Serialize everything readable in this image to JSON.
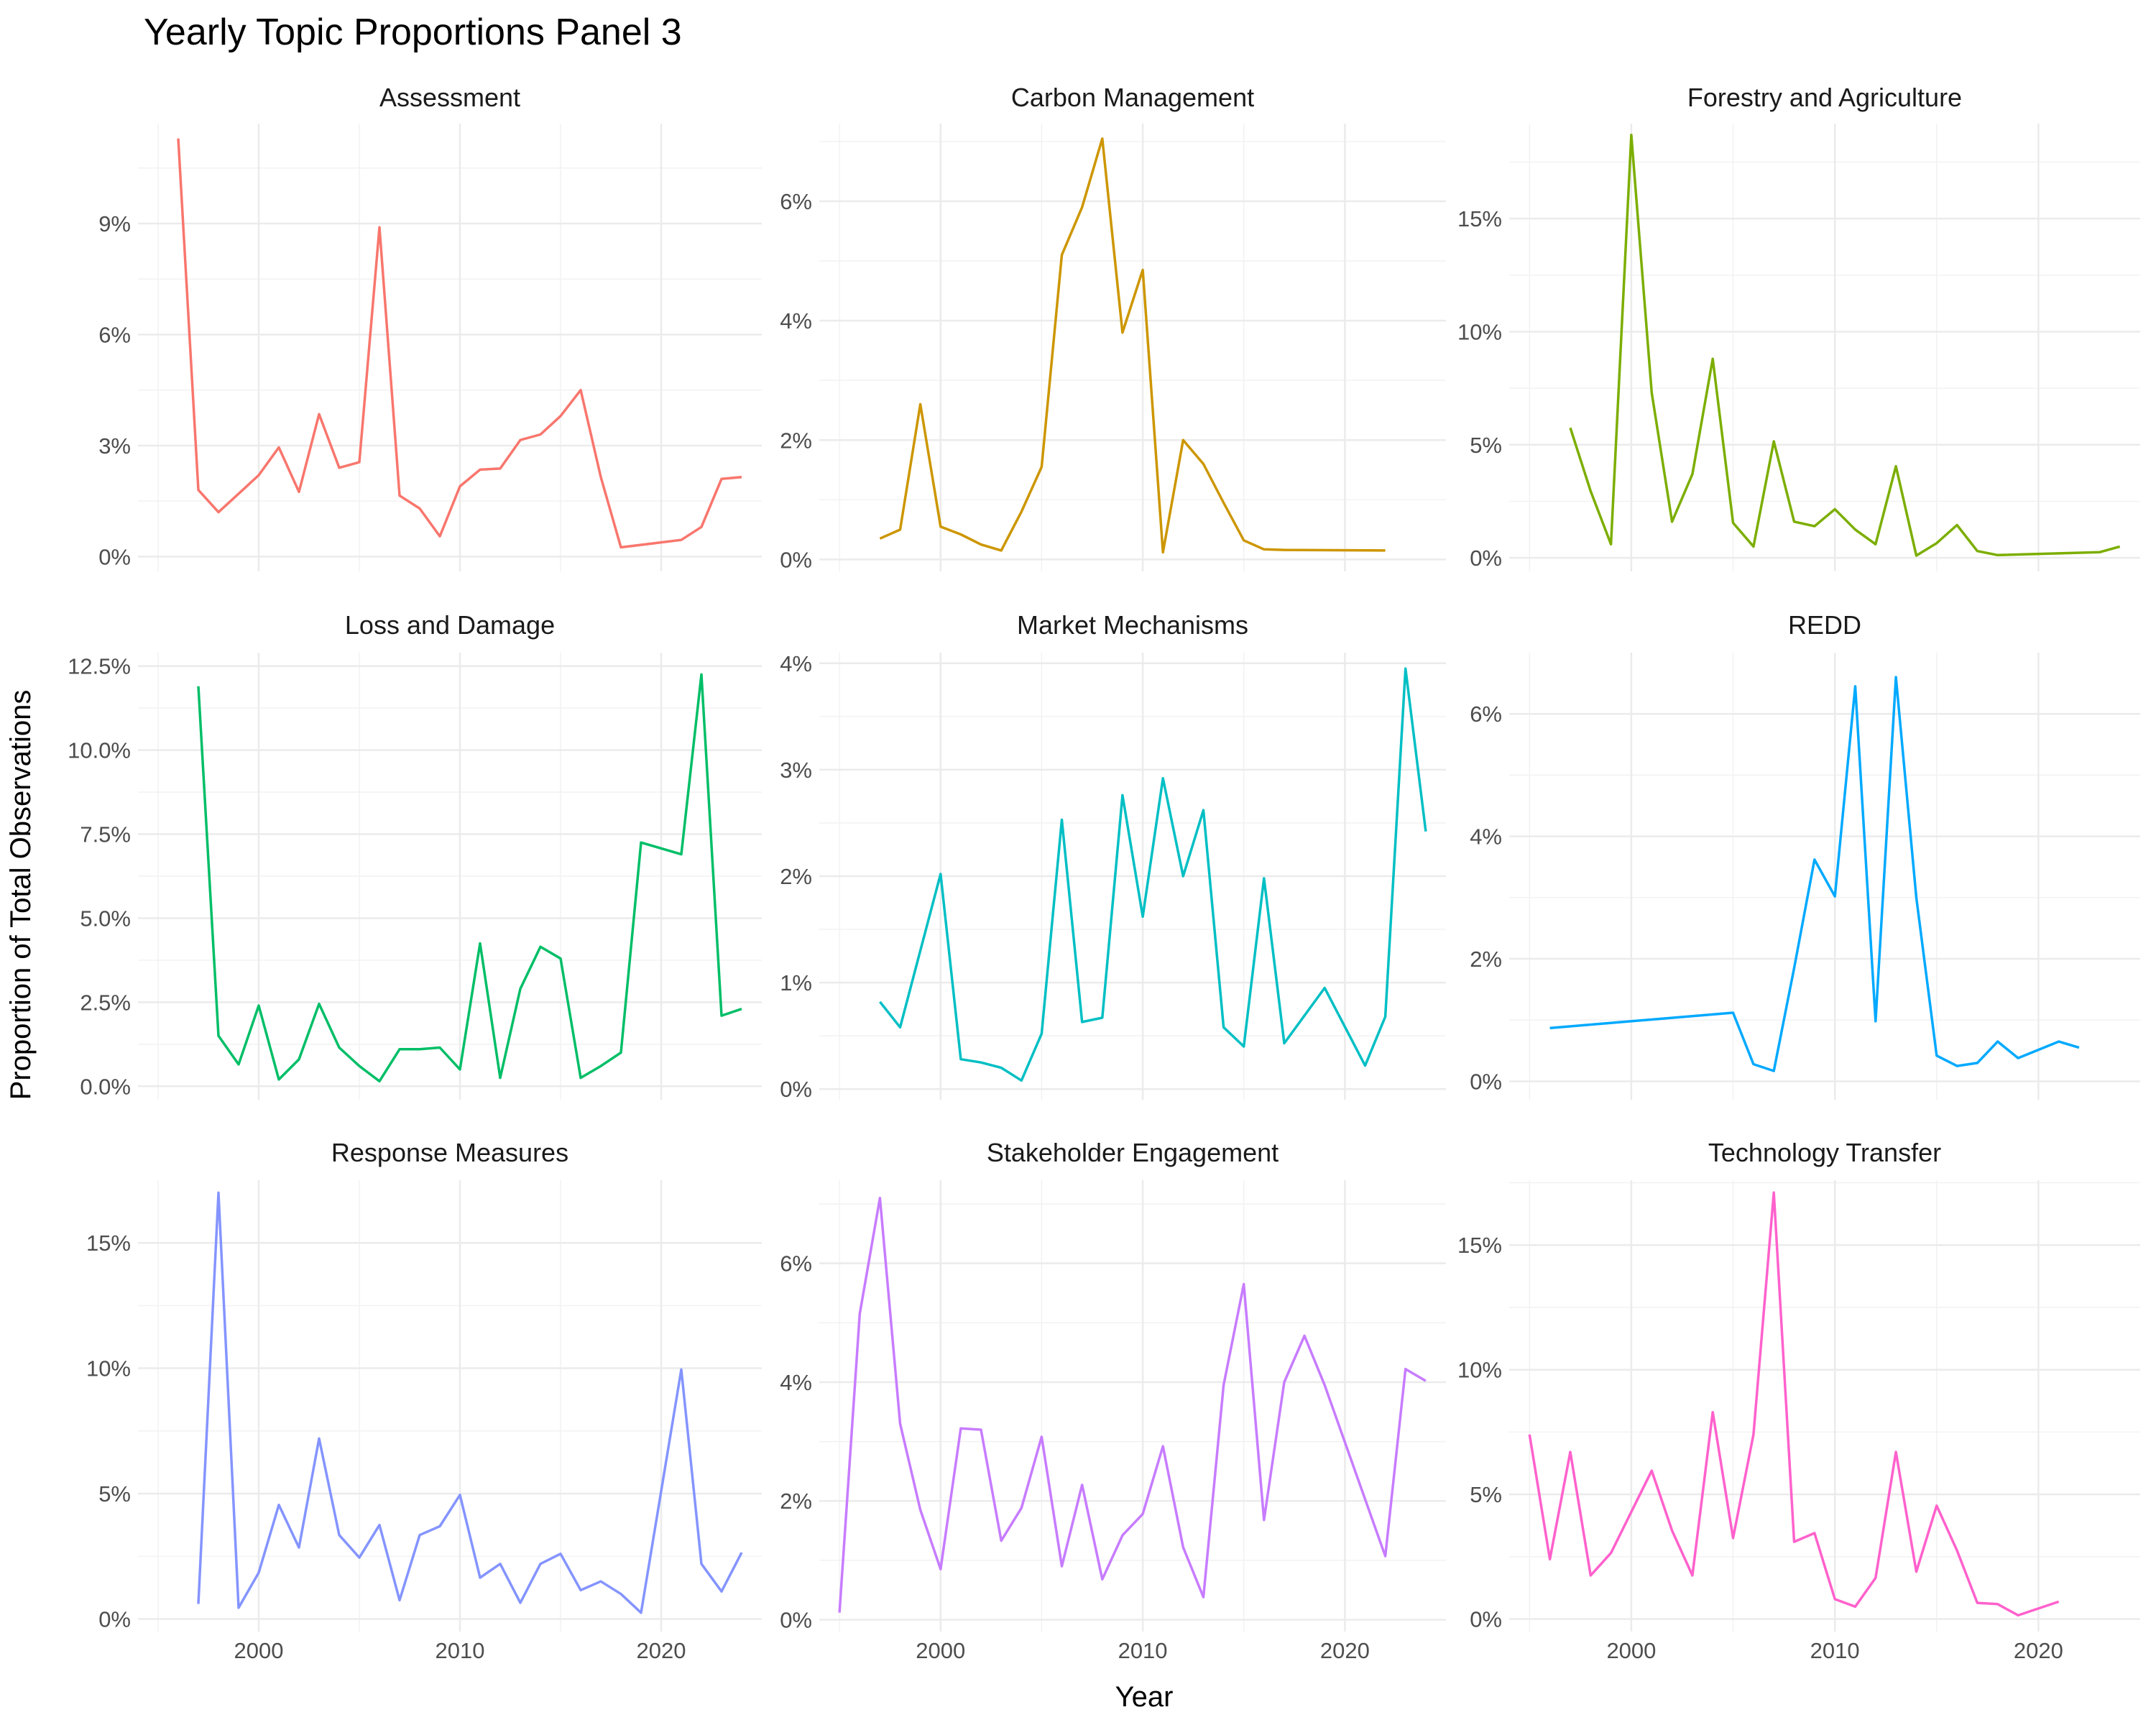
{
  "chart_data": {
    "type": "line",
    "title": "Yearly Topic Proportions Panel 3",
    "xlabel": "Year",
    "ylabel": "Proportion of Total Observations",
    "xlim": [
      1994,
      2025
    ],
    "x_ticks": [
      2000,
      2010,
      2020
    ],
    "x_tick_labels": [
      "2000",
      "2010",
      "2020"
    ],
    "grid": true,
    "legend": "none",
    "panels": [
      {
        "name": "Assessment",
        "color": "#F8766D",
        "ylim": [
          -0.4,
          11.7
        ],
        "y_ticks": [
          0,
          3,
          6,
          9
        ],
        "y_tick_labels": [
          "0%",
          "3%",
          "6%",
          "9%"
        ],
        "x": [
          1996,
          1997,
          1998,
          1999,
          2000,
          2001,
          2002,
          2003,
          2004,
          2005,
          2006,
          2007,
          2008,
          2009,
          2010,
          2011,
          2012,
          2013,
          2014,
          2015,
          2016,
          2017,
          2018,
          2021,
          2022,
          2023,
          2024
        ],
        "values": [
          11.3,
          1.8,
          1.2,
          1.7,
          2.2,
          2.95,
          1.75,
          3.85,
          2.4,
          2.55,
          8.9,
          1.65,
          1.3,
          0.55,
          1.9,
          2.35,
          2.38,
          3.15,
          3.3,
          3.8,
          4.5,
          2.15,
          0.25,
          0.45,
          0.8,
          2.1,
          2.15
        ]
      },
      {
        "name": "Carbon Management",
        "color": "#CD9600",
        "ylim": [
          -0.2,
          7.3
        ],
        "y_ticks": [
          0,
          2,
          4,
          6
        ],
        "y_tick_labels": [
          "0%",
          "2%",
          "4%",
          "6%"
        ],
        "x": [
          1997,
          1998,
          1999,
          2000,
          2001,
          2002,
          2003,
          2004,
          2005,
          2006,
          2007,
          2008,
          2009,
          2010,
          2011,
          2012,
          2013,
          2014,
          2015,
          2016,
          2017,
          2022
        ],
        "values": [
          0.35,
          0.5,
          2.6,
          0.55,
          0.42,
          0.25,
          0.15,
          0.8,
          1.55,
          5.1,
          5.9,
          7.05,
          3.8,
          4.85,
          0.12,
          2.0,
          1.6,
          0.95,
          0.32,
          0.17,
          0.16,
          0.15
        ]
      },
      {
        "name": "Forestry and Agriculture",
        "color": "#7CAE00",
        "ylim": [
          -0.6,
          19.2
        ],
        "y_ticks": [
          0,
          5,
          10,
          15
        ],
        "y_tick_labels": [
          "0%",
          "5%",
          "10%",
          "15%"
        ],
        "x": [
          1997,
          1998,
          1999,
          2000,
          2001,
          2002,
          2003,
          2004,
          2005,
          2006,
          2007,
          2008,
          2009,
          2010,
          2011,
          2012,
          2013,
          2014,
          2015,
          2016,
          2017,
          2018,
          2023,
          2024
        ],
        "values": [
          5.75,
          2.95,
          0.6,
          18.7,
          7.3,
          1.6,
          3.7,
          8.8,
          1.55,
          0.5,
          5.15,
          1.6,
          1.4,
          2.15,
          1.25,
          0.6,
          4.05,
          0.1,
          0.65,
          1.45,
          0.3,
          0.12,
          0.25,
          0.5
        ]
      },
      {
        "name": "Loss and Damage",
        "color": "#00BE67",
        "ylim": [
          -0.4,
          12.9
        ],
        "y_ticks": [
          0,
          2.5,
          5,
          7.5,
          10,
          12.5
        ],
        "y_tick_labels": [
          "0.0%",
          "2.5%",
          "5.0%",
          "7.5%",
          "10.0%",
          "12.5%"
        ],
        "x": [
          1997,
          1998,
          1999,
          2000,
          2001,
          2002,
          2003,
          2004,
          2005,
          2006,
          2007,
          2008,
          2009,
          2010,
          2011,
          2012,
          2013,
          2014,
          2015,
          2016,
          2017,
          2018,
          2019,
          2021,
          2022,
          2023,
          2024
        ],
        "values": [
          11.9,
          1.5,
          0.65,
          2.4,
          0.2,
          0.8,
          2.45,
          1.15,
          0.6,
          0.15,
          1.1,
          1.1,
          1.15,
          0.5,
          4.25,
          0.25,
          2.9,
          4.15,
          3.8,
          0.25,
          0.6,
          1.0,
          7.25,
          6.9,
          12.25,
          2.1,
          2.3
        ]
      },
      {
        "name": "Market Mechanisms",
        "color": "#00BFC4",
        "ylim": [
          -0.1,
          4.1
        ],
        "y_ticks": [
          0,
          1,
          2,
          3,
          4
        ],
        "y_tick_labels": [
          "0%",
          "1%",
          "2%",
          "3%",
          "4%"
        ],
        "x": [
          1997,
          1998,
          1999,
          2000,
          2001,
          2002,
          2003,
          2004,
          2005,
          2006,
          2007,
          2008,
          2009,
          2010,
          2011,
          2012,
          2013,
          2014,
          2015,
          2016,
          2017,
          2019,
          2021,
          2022,
          2023,
          2024
        ],
        "values": [
          0.82,
          0.58,
          1.3,
          2.02,
          0.28,
          0.25,
          0.2,
          0.08,
          0.52,
          2.53,
          0.63,
          0.67,
          2.76,
          1.62,
          2.92,
          2.0,
          2.62,
          0.58,
          0.4,
          1.98,
          0.43,
          0.95,
          0.22,
          0.68,
          3.95,
          2.42
        ]
      },
      {
        "name": "REDD",
        "color": "#00A9FF",
        "ylim": [
          -0.3,
          7.0
        ],
        "y_ticks": [
          0,
          2,
          4,
          6
        ],
        "y_tick_labels": [
          "0%",
          "2%",
          "4%",
          "6%"
        ],
        "x": [
          1996,
          2005,
          2006,
          2007,
          2008,
          2009,
          2010,
          2011,
          2012,
          2013,
          2014,
          2015,
          2016,
          2017,
          2018,
          2019,
          2021,
          2022
        ],
        "values": [
          0.87,
          1.12,
          0.28,
          0.17,
          1.85,
          3.62,
          3.02,
          6.45,
          0.98,
          6.6,
          3.0,
          0.42,
          0.25,
          0.3,
          0.65,
          0.38,
          0.65,
          0.55
        ]
      },
      {
        "name": "Response Measures",
        "color": "#8494FF",
        "ylim": [
          -0.5,
          17.5
        ],
        "y_ticks": [
          0,
          5,
          10,
          15
        ],
        "y_tick_labels": [
          "0%",
          "5%",
          "10%",
          "15%"
        ],
        "x": [
          1997,
          1998,
          1999,
          2000,
          2001,
          2002,
          2003,
          2004,
          2005,
          2006,
          2007,
          2008,
          2009,
          2010,
          2011,
          2012,
          2013,
          2014,
          2015,
          2016,
          2017,
          2018,
          2019,
          2021,
          2022,
          2023,
          2024
        ],
        "values": [
          0.6,
          17.0,
          0.45,
          1.85,
          4.55,
          2.85,
          7.2,
          3.35,
          2.45,
          3.75,
          0.75,
          3.35,
          3.7,
          4.95,
          1.65,
          2.2,
          0.65,
          2.2,
          2.6,
          1.15,
          1.5,
          1.0,
          0.25,
          9.95,
          2.2,
          1.1,
          2.65
        ]
      },
      {
        "name": "Stakeholder Engagement",
        "color": "#C77CFF",
        "ylim": [
          -0.2,
          7.4
        ],
        "y_ticks": [
          0,
          2,
          4,
          6
        ],
        "y_tick_labels": [
          "0%",
          "2%",
          "4%",
          "6%"
        ],
        "x": [
          1995,
          1996,
          1997,
          1998,
          1999,
          2000,
          2001,
          2002,
          2003,
          2004,
          2005,
          2006,
          2007,
          2008,
          2009,
          2010,
          2011,
          2012,
          2013,
          2014,
          2015,
          2016,
          2017,
          2018,
          2019,
          2022,
          2023,
          2024
        ],
        "values": [
          0.12,
          5.15,
          7.1,
          3.3,
          1.85,
          0.85,
          3.22,
          3.2,
          1.33,
          1.88,
          3.08,
          0.9,
          2.27,
          0.68,
          1.42,
          1.78,
          2.92,
          1.22,
          0.38,
          3.95,
          5.65,
          1.68,
          4.0,
          4.78,
          3.95,
          1.07,
          4.22,
          4.02
        ]
      },
      {
        "name": "Technology Transfer",
        "color": "#FF61CC",
        "ylim": [
          -0.5,
          17.6
        ],
        "y_ticks": [
          0,
          5,
          10,
          15
        ],
        "y_tick_labels": [
          "0%",
          "5%",
          "10%",
          "15%"
        ],
        "x": [
          1995,
          1996,
          1997,
          1998,
          1999,
          2000,
          2001,
          2002,
          2003,
          2004,
          2005,
          2006,
          2007,
          2008,
          2009,
          2010,
          2011,
          2012,
          2013,
          2014,
          2015,
          2016,
          2017,
          2018,
          2019,
          2021
        ],
        "values": [
          7.4,
          2.4,
          6.7,
          1.75,
          2.65,
          4.3,
          5.95,
          3.55,
          1.75,
          8.3,
          3.25,
          7.4,
          17.1,
          3.1,
          3.45,
          0.8,
          0.5,
          1.65,
          6.7,
          1.9,
          4.55,
          2.75,
          0.65,
          0.6,
          0.15,
          0.7
        ]
      }
    ]
  }
}
